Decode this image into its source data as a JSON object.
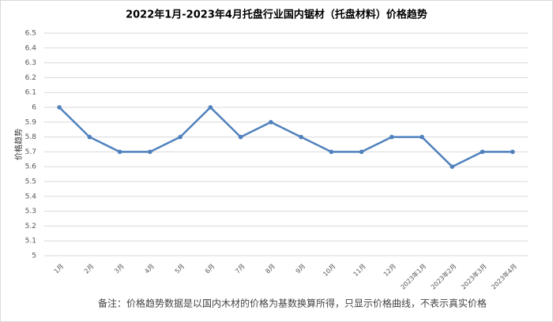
{
  "chart_data": {
    "type": "line",
    "title": "2022年1月-2023年4月托盘行业国内锯材（托盘材料）价格趋势",
    "y_label": "价格趋势",
    "note": "备注：价格趋势数据是以国内木材的价格为基数换算所得，只显示价格曲线，不表示真实价格",
    "categories": [
      "1月",
      "2月",
      "3月",
      "4月",
      "5月",
      "6月",
      "7月",
      "8月",
      "9月",
      "10月",
      "11月",
      "12月",
      "2023年1月",
      "2023年2月",
      "2023年3月",
      "2023年4月"
    ],
    "values": [
      6,
      5.8,
      5.7,
      5.7,
      5.8,
      6,
      5.8,
      5.9,
      5.8,
      5.7,
      5.7,
      5.8,
      5.8,
      5.6,
      5.7,
      5.7
    ],
    "color": "#4f81bd",
    "ylim": [
      5,
      6.5
    ],
    "yticks": [
      5,
      5.1,
      5.2,
      5.3,
      5.4,
      5.5,
      5.6,
      5.7,
      5.8,
      5.9,
      6,
      6.1,
      6.2,
      6.3,
      6.4,
      6.5
    ],
    "grid": true
  }
}
